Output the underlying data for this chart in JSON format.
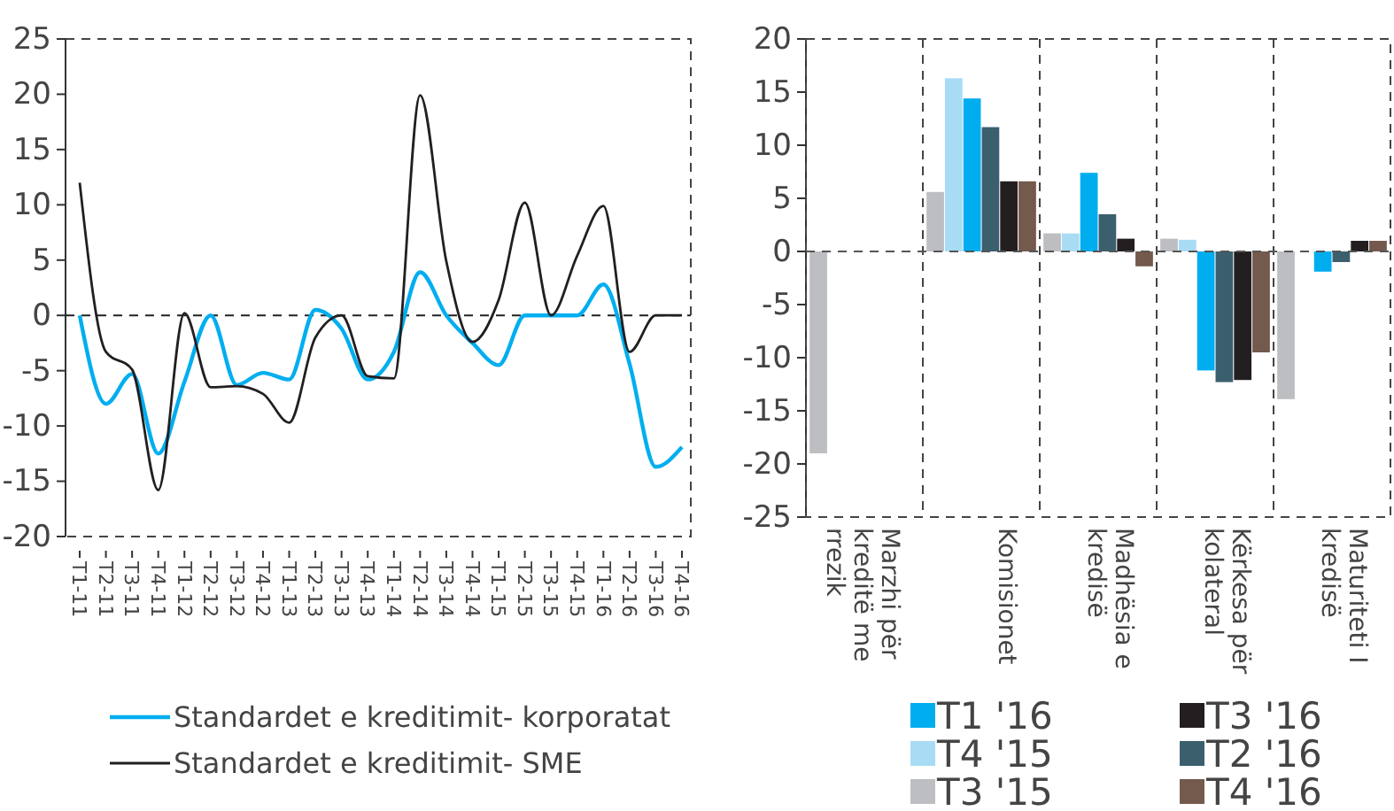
{
  "chart_data": [
    {
      "type": "line",
      "categories": [
        "T1-11",
        "T2-11",
        "T3-11",
        "T4-11",
        "T1-12",
        "T2-12",
        "T3-12",
        "T4-12",
        "T1-13",
        "T2-13",
        "T3-13",
        "T4-13",
        "T1-14",
        "T2-14",
        "T3-14",
        "T4-14",
        "T1-15",
        "T2-15",
        "T3-15",
        "T4-15",
        "T1-16",
        "T2-16",
        "T3-16",
        "T4-16"
      ],
      "ylim": [
        -20,
        25
      ],
      "yticks": [
        -20,
        -15,
        -10,
        -5,
        0,
        5,
        10,
        15,
        20,
        25
      ],
      "grid": false,
      "legend": "bottom",
      "line_style": "solid",
      "marker": "none",
      "ref_lines": [
        {
          "axis": "y",
          "value": 0,
          "line_style": "dashed",
          "color": "#222222"
        }
      ],
      "series": [
        {
          "name": "Standardet e kreditimit- korporatat",
          "color": "#00aeef",
          "values": [
            0,
            -8,
            -5.3,
            -12.5,
            -6,
            0,
            -6.3,
            -5.2,
            -5.8,
            0.5,
            -1.2,
            -5.8,
            -3.3,
            3.9,
            0,
            -2.5,
            -4.5,
            0,
            0,
            0,
            2.8,
            -4.4,
            -13.7,
            -11.9
          ]
        },
        {
          "name": "Standardet e kreditimit- SME",
          "color": "#231f20",
          "values": [
            12,
            -3.3,
            -4.9,
            -15.8,
            0.2,
            -6.5,
            -6.4,
            -7.1,
            -9.7,
            -2,
            0,
            -5.5,
            -5.7,
            19.9,
            4.9,
            -2.4,
            1.4,
            10.2,
            0,
            5.4,
            9.9,
            -3.3,
            0,
            0
          ]
        }
      ]
    },
    {
      "type": "bar",
      "categories": [
        "Marzhi për kreditë me rrezik",
        "Komisionet",
        "Madhësia e kredisë",
        "Kërkesa për kolateral",
        "Maturiteti I kredisë"
      ],
      "ylim": [
        -25,
        20
      ],
      "yticks": [
        -25,
        -20,
        -15,
        -10,
        -5,
        0,
        5,
        10,
        15,
        20
      ],
      "grid": "x",
      "legend": "bottom right",
      "ref_lines": [
        {
          "axis": "y",
          "value": 0,
          "line_style": "dashed",
          "color": "#555555"
        }
      ],
      "series": [
        {
          "name": "T3 '15",
          "color": "#bdbec2",
          "values": [
            -19,
            5.6,
            1.7,
            1.2,
            -13.9
          ]
        },
        {
          "name": "T4 '15",
          "color": "#a8dcf5",
          "values": [
            null,
            16.3,
            1.7,
            1.1,
            null
          ]
        },
        {
          "name": "T1 '16",
          "color": "#00adef",
          "values": [
            null,
            14.4,
            7.4,
            -11.2,
            -1.9
          ]
        },
        {
          "name": "T2 '16",
          "color": "#3c5f6e",
          "values": [
            null,
            11.7,
            3.5,
            -12.3,
            -1
          ]
        },
        {
          "name": "T3 '16",
          "color": "#231f20",
          "values": [
            null,
            6.6,
            1.2,
            -12.1,
            1
          ]
        },
        {
          "name": "T4 '16",
          "color": "#735a4c",
          "values": [
            null,
            6.6,
            -1.4,
            -9.5,
            1
          ]
        }
      ]
    }
  ]
}
